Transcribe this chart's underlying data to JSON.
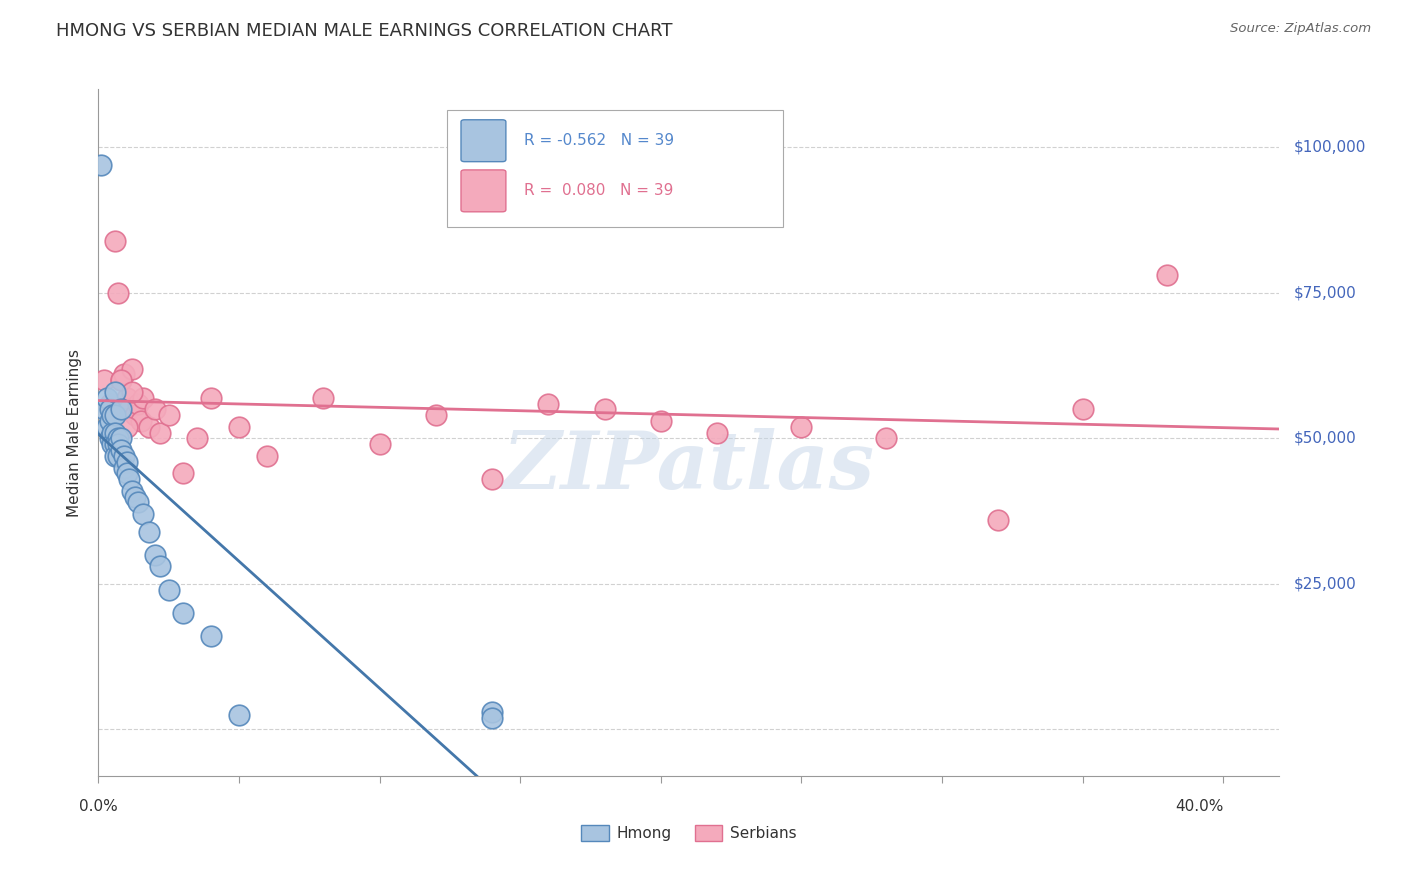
{
  "title": "HMONG VS SERBIAN MEDIAN MALE EARNINGS CORRELATION CHART",
  "source": "Source: ZipAtlas.com",
  "ylabel": "Median Male Earnings",
  "legend_hmong": "Hmong",
  "legend_serbians": "Serbians",
  "r_hmong": "-0.562",
  "r_serbians": "0.080",
  "n_hmong": "39",
  "n_serbians": "39",
  "color_hmong_fill": "#a8c4e0",
  "color_hmong_edge": "#5588bb",
  "color_serbians_fill": "#f4aabc",
  "color_serbians_edge": "#e07090",
  "color_hmong_line": "#4477aa",
  "color_serbians_line": "#e07090",
  "color_title": "#333333",
  "color_source": "#666666",
  "color_right_labels": "#4466bb",
  "color_legend_r_hmong": "#5588cc",
  "color_legend_r_serbians": "#e07090",
  "watermark_color": "#c5d5e8",
  "background_color": "#ffffff",
  "grid_color": "#cccccc",
  "xlim": [
    0.0,
    0.42
  ],
  "ylim": [
    -8000,
    110000
  ],
  "right_axis_values": [
    0,
    25000,
    50000,
    75000,
    100000
  ],
  "right_axis_labels": [
    "",
    "$25,000",
    "$50,000",
    "$75,000",
    "$100,000"
  ],
  "hmong_x": [
    0.001,
    0.002,
    0.003,
    0.003,
    0.004,
    0.004,
    0.004,
    0.005,
    0.005,
    0.005,
    0.006,
    0.006,
    0.006,
    0.006,
    0.007,
    0.007,
    0.007,
    0.008,
    0.008,
    0.009,
    0.009,
    0.01,
    0.01,
    0.011,
    0.012,
    0.013,
    0.014,
    0.016,
    0.018,
    0.02,
    0.022,
    0.025,
    0.03,
    0.04,
    0.05,
    0.006,
    0.008,
    0.14,
    0.14
  ],
  "hmong_y": [
    97000,
    55000,
    57000,
    52000,
    53000,
    50000,
    55000,
    54000,
    51000,
    49000,
    54000,
    51000,
    49000,
    47000,
    50000,
    49000,
    47000,
    50000,
    48000,
    47000,
    45000,
    46000,
    44000,
    43000,
    41000,
    40000,
    39000,
    37000,
    34000,
    30000,
    28000,
    24000,
    20000,
    16000,
    2500,
    58000,
    55000,
    3000,
    2000
  ],
  "serbians_x": [
    0.002,
    0.004,
    0.005,
    0.006,
    0.007,
    0.008,
    0.009,
    0.01,
    0.011,
    0.012,
    0.013,
    0.014,
    0.015,
    0.016,
    0.018,
    0.02,
    0.022,
    0.025,
    0.03,
    0.035,
    0.04,
    0.05,
    0.06,
    0.08,
    0.1,
    0.12,
    0.14,
    0.18,
    0.22,
    0.25,
    0.28,
    0.32,
    0.35,
    0.38,
    0.008,
    0.01,
    0.012,
    0.16,
    0.2
  ],
  "serbians_y": [
    60000,
    56000,
    55000,
    84000,
    75000,
    60000,
    61000,
    57000,
    55000,
    62000,
    54000,
    56000,
    53000,
    57000,
    52000,
    55000,
    51000,
    54000,
    44000,
    50000,
    57000,
    52000,
    47000,
    57000,
    49000,
    54000,
    43000,
    55000,
    51000,
    52000,
    50000,
    36000,
    55000,
    78000,
    60000,
    52000,
    58000,
    56000,
    53000
  ]
}
